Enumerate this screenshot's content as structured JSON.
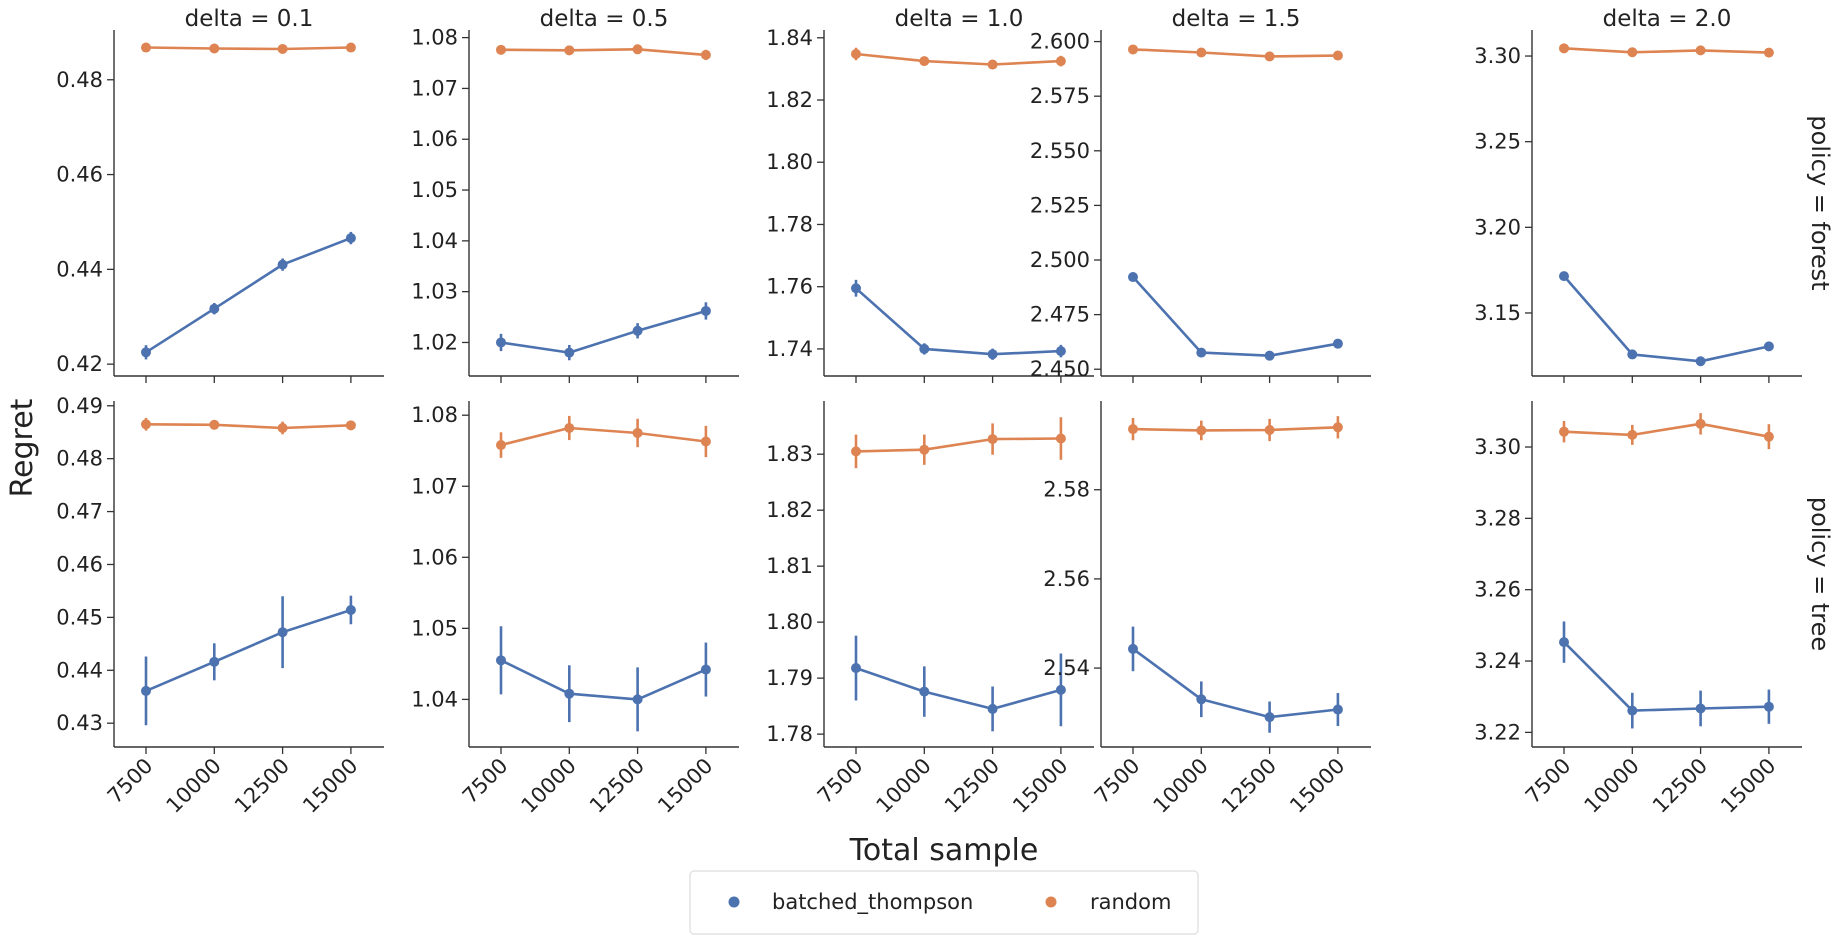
{
  "chart_data": {
    "type": "line",
    "ylabel": "Regret",
    "xlabel": "Total sample",
    "x": [
      7500,
      10000,
      12500,
      15000
    ],
    "x_tick_labels": [
      "7500",
      "10000",
      "12500",
      "15000"
    ],
    "column_titles": [
      "delta = 0.1",
      "delta = 0.5",
      "delta = 1.0",
      "delta = 1.5",
      "delta = 2.0"
    ],
    "row_titles": [
      "policy = forest",
      "policy = tree"
    ],
    "legend": {
      "placement": "bottom-center",
      "entries": [
        {
          "name": "batched_thompson",
          "color": "#4c72b0"
        },
        {
          "name": "random",
          "color": "#dd8452"
        }
      ]
    },
    "grid": false,
    "panels": [
      {
        "col": 0,
        "row": 0,
        "ylim": [
          0.4175,
          0.4905
        ],
        "yticks": [
          0.42,
          0.44,
          0.46,
          0.48
        ],
        "ytick_labels": [
          "0.42",
          "0.44",
          "0.46",
          "0.48"
        ],
        "series": [
          {
            "name": "batched_thompson",
            "values": [
              0.4225,
              0.4317,
              0.441,
              0.4466
            ],
            "err": [
              0.0015,
              0.0012,
              0.0013,
              0.0013
            ]
          },
          {
            "name": "random",
            "values": [
              0.4868,
              0.4866,
              0.4865,
              0.4868
            ],
            "err": [
              0.0003,
              0.0003,
              0.0003,
              0.0003
            ]
          }
        ]
      },
      {
        "col": 1,
        "row": 0,
        "ylim": [
          1.0134,
          1.0815
        ],
        "yticks": [
          1.02,
          1.03,
          1.04,
          1.05,
          1.06,
          1.07,
          1.08
        ],
        "ytick_labels": [
          "1.02",
          "1.03",
          "1.04",
          "1.05",
          "1.06",
          "1.07",
          "1.08"
        ],
        "series": [
          {
            "name": "batched_thompson",
            "values": [
              1.02,
              1.018,
              1.0223,
              1.0262
            ],
            "err": [
              0.0017,
              0.0015,
              0.0015,
              0.0017
            ]
          },
          {
            "name": "random",
            "values": [
              1.0776,
              1.0775,
              1.0777,
              1.0766
            ],
            "err": [
              0.0005,
              0.0008,
              0.0005,
              0.001
            ]
          }
        ]
      },
      {
        "col": 2,
        "row": 0,
        "ylim": [
          1.7313,
          1.8425
        ],
        "yticks": [
          1.74,
          1.76,
          1.78,
          1.8,
          1.82,
          1.84
        ],
        "ytick_labels": [
          "1.74",
          "1.76",
          "1.78",
          "1.80",
          "1.82",
          "1.84"
        ],
        "series": [
          {
            "name": "batched_thompson",
            "values": [
              1.7595,
              1.74,
              1.7383,
              1.7393
            ],
            "err": [
              0.0027,
              0.0018,
              0.0018,
              0.002
            ]
          },
          {
            "name": "random",
            "values": [
              1.8348,
              1.8325,
              1.8314,
              1.8325
            ],
            "err": [
              0.002,
              0.001,
              0.001,
              0.0017
            ]
          }
        ]
      },
      {
        "col": 3,
        "row": 0,
        "ylim": [
          2.4469,
          2.6053
        ],
        "yticks": [
          2.45,
          2.475,
          2.5,
          2.525,
          2.55,
          2.575,
          2.6
        ],
        "ytick_labels": [
          "2.450",
          "2.475",
          "2.500",
          "2.525",
          "2.550",
          "2.575",
          "2.600"
        ],
        "series": [
          {
            "name": "batched_thompson",
            "values": [
              2.4922,
              2.4576,
              2.4562,
              2.4617
            ],
            "err": [
              0.0015,
              0.001,
              0.001,
              0.0012
            ]
          },
          {
            "name": "random",
            "values": [
              2.5964,
              2.595,
              2.5932,
              2.5936
            ],
            "err": [
              0.001,
              0.001,
              0.0008,
              0.001
            ]
          }
        ]
      },
      {
        "col": 4,
        "row": 0,
        "ylim": [
          3.1132,
          3.3152
        ],
        "yticks": [
          3.15,
          3.2,
          3.25,
          3.3
        ],
        "ytick_labels": [
          "3.15",
          "3.20",
          "3.25",
          "3.30"
        ],
        "series": [
          {
            "name": "batched_thompson",
            "values": [
              3.1715,
              3.1258,
              3.1218,
              3.1305
            ],
            "err": [
              0.0025,
              0.0015,
              0.0015,
              0.0018
            ]
          },
          {
            "name": "random",
            "values": [
              3.3045,
              3.3022,
              3.3033,
              3.302
            ],
            "err": [
              0.001,
              0.001,
              0.001,
              0.001
            ]
          }
        ]
      },
      {
        "col": 0,
        "row": 1,
        "ylim": [
          0.4255,
          0.4909
        ],
        "yticks": [
          0.43,
          0.44,
          0.45,
          0.46,
          0.47,
          0.48,
          0.49
        ],
        "ytick_labels": [
          "0.43",
          "0.44",
          "0.45",
          "0.46",
          "0.47",
          "0.48",
          "0.49"
        ],
        "series": [
          {
            "name": "batched_thompson",
            "values": [
              0.4361,
              0.4416,
              0.4472,
              0.4514
            ],
            "err": [
              0.0065,
              0.0035,
              0.0068,
              0.0027
            ]
          },
          {
            "name": "random",
            "values": [
              0.4865,
              0.4864,
              0.4858,
              0.4863
            ],
            "err": [
              0.0012,
              0.0005,
              0.0012,
              0.0008
            ]
          }
        ]
      },
      {
        "col": 1,
        "row": 1,
        "ylim": [
          1.0333,
          1.082
        ],
        "yticks": [
          1.04,
          1.05,
          1.06,
          1.07,
          1.08
        ],
        "ytick_labels": [
          "1.04",
          "1.05",
          "1.06",
          "1.07",
          "1.08"
        ],
        "series": [
          {
            "name": "batched_thompson",
            "values": [
              1.0455,
              1.0408,
              1.04,
              1.0442
            ],
            "err": [
              0.0048,
              0.004,
              0.0045,
              0.0038
            ]
          },
          {
            "name": "random",
            "values": [
              1.0758,
              1.0782,
              1.0775,
              1.0763
            ],
            "err": [
              0.0018,
              0.0017,
              0.002,
              0.0022
            ]
          }
        ]
      },
      {
        "col": 2,
        "row": 1,
        "ylim": [
          1.7777,
          1.8395
        ],
        "yticks": [
          1.78,
          1.79,
          1.8,
          1.81,
          1.82,
          1.83
        ],
        "ytick_labels": [
          "1.78",
          "1.79",
          "1.80",
          "1.81",
          "1.82",
          "1.83"
        ],
        "series": [
          {
            "name": "batched_thompson",
            "values": [
              1.7918,
              1.7876,
              1.7845,
              1.7879
            ],
            "err": [
              0.0058,
              0.0045,
              0.004,
              0.0065
            ]
          },
          {
            "name": "random",
            "values": [
              1.8305,
              1.8308,
              1.8327,
              1.8328
            ],
            "err": [
              0.003,
              0.0027,
              0.0028,
              0.0038
            ]
          }
        ]
      },
      {
        "col": 3,
        "row": 1,
        "ylim": [
          2.5223,
          2.5999
        ],
        "yticks": [
          2.54,
          2.56,
          2.58
        ],
        "ytick_labels": [
          "2.54",
          "2.56",
          "2.58"
        ],
        "series": [
          {
            "name": "batched_thompson",
            "values": [
              2.5443,
              2.533,
              2.529,
              2.5307
            ],
            "err": [
              0.005,
              0.004,
              0.0035,
              0.0037
            ]
          },
          {
            "name": "random",
            "values": [
              2.5936,
              2.5933,
              2.5934,
              2.594
            ],
            "err": [
              0.0025,
              0.0022,
              0.0025,
              0.0025
            ]
          }
        ]
      },
      {
        "col": 4,
        "row": 1,
        "ylim": [
          3.2159,
          3.3129
        ],
        "yticks": [
          3.22,
          3.24,
          3.26,
          3.28,
          3.3
        ],
        "ytick_labels": [
          "3.22",
          "3.24",
          "3.26",
          "3.28",
          "3.30"
        ],
        "series": [
          {
            "name": "batched_thompson",
            "values": [
              3.2453,
              3.2261,
              3.2267,
              3.2272
            ],
            "err": [
              0.0058,
              0.005,
              0.005,
              0.0048
            ]
          },
          {
            "name": "random",
            "values": [
              3.3043,
              3.3034,
              3.3065,
              3.3029
            ],
            "err": [
              0.003,
              0.0028,
              0.003,
              0.0035
            ]
          }
        ]
      }
    ]
  }
}
